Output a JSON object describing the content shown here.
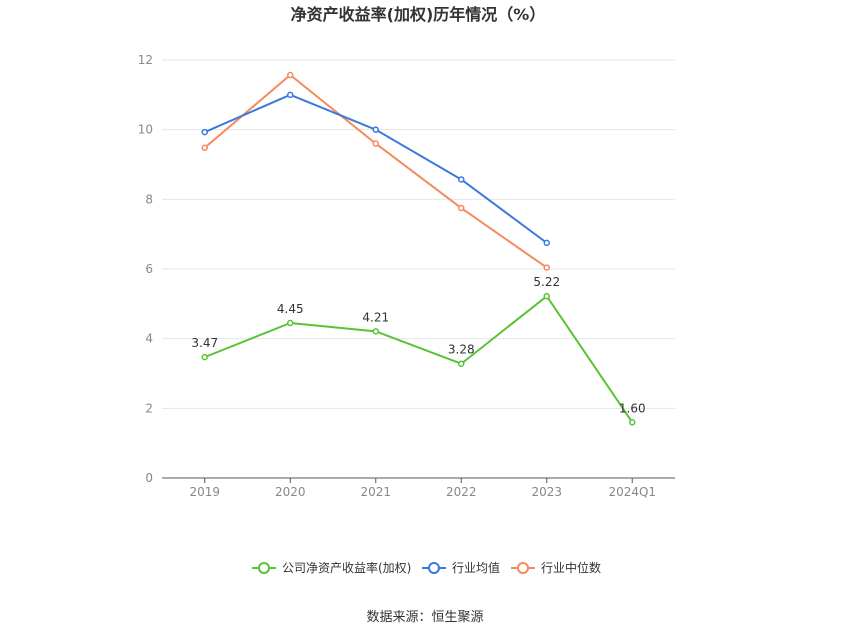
{
  "chart_data": {
    "type": "line",
    "title": "净资产收益率(加权)历年情况（%）",
    "categories": [
      "2019",
      "2020",
      "2021",
      "2022",
      "2023",
      "2024Q1"
    ],
    "ylim": [
      0,
      12
    ],
    "yticks": [
      "0",
      "2",
      "4",
      "6",
      "8",
      "10",
      "12"
    ],
    "grid": true,
    "legend_position": "bottom",
    "series": [
      {
        "name": "公司净资产收益率(加权)",
        "color": "#5ac235",
        "values": [
          3.47,
          4.45,
          4.21,
          3.28,
          5.22,
          1.6
        ],
        "labels": [
          "3.47",
          "4.45",
          "4.21",
          "3.28",
          "5.22",
          "1.60"
        ]
      },
      {
        "name": "行业均值",
        "color": "#3b78dc",
        "values": [
          9.93,
          11.0,
          10.0,
          8.57,
          6.75,
          null
        ]
      },
      {
        "name": "行业中位数",
        "color": "#f58a5c",
        "values": [
          9.48,
          11.57,
          9.6,
          7.75,
          6.04,
          null
        ]
      }
    ]
  },
  "source": "数据来源：恒生聚源"
}
